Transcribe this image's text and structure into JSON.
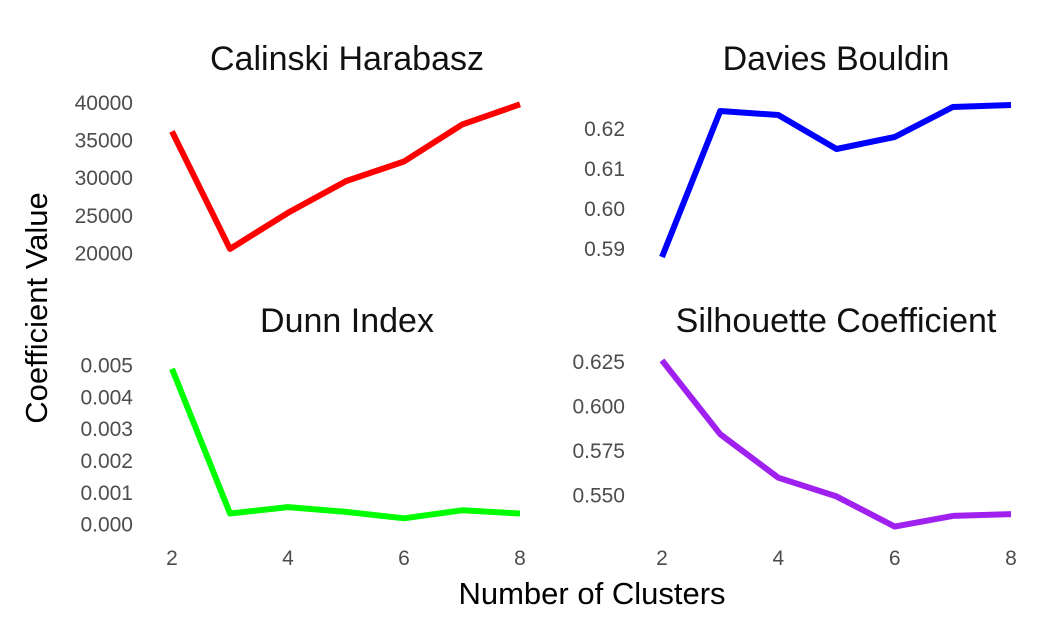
{
  "figure": {
    "ylabel": "Coefficient Value",
    "xlabel": "Number of Clusters"
  },
  "chart_data": [
    {
      "type": "line",
      "title": "Calinski Harabasz",
      "x": [
        2,
        3,
        4,
        5,
        6,
        7,
        8
      ],
      "series": [
        {
          "values": [
            36200,
            20600,
            25400,
            29600,
            32200,
            37100,
            39800
          ],
          "color": "#ff0000"
        }
      ],
      "ylim": [
        19000,
        40500
      ],
      "yticks": [
        "40000",
        "35000",
        "30000",
        "25000",
        "20000"
      ],
      "ytick_values": [
        40000,
        35000,
        30000,
        25000,
        20000
      ],
      "xlim": [
        2,
        8
      ],
      "xticks": [],
      "grid": false
    },
    {
      "type": "line",
      "title": "Davies Bouldin",
      "x": [
        2,
        3,
        4,
        5,
        6,
        7,
        8
      ],
      "series": [
        {
          "values": [
            0.588,
            0.6245,
            0.6235,
            0.615,
            0.618,
            0.6255,
            0.626
          ],
          "color": "#0000ff"
        }
      ],
      "ylim": [
        0.587,
        0.6275
      ],
      "yticks": [
        "0.62",
        "0.61",
        "0.60",
        "0.59"
      ],
      "ytick_values": [
        0.62,
        0.61,
        0.6,
        0.59
      ],
      "xlim": [
        2,
        8
      ],
      "xticks": [],
      "grid": false
    },
    {
      "type": "line",
      "title": "Dunn Index",
      "x": [
        2,
        3,
        4,
        5,
        6,
        7,
        8
      ],
      "series": [
        {
          "values": [
            0.0049,
            0.00035,
            0.00055,
            0.0004,
            0.0002,
            0.00045,
            0.00035
          ],
          "color": "#00ff00"
        }
      ],
      "ylim": [
        -0.0002,
        0.0053
      ],
      "yticks": [
        "0.005",
        "0.004",
        "0.003",
        "0.002",
        "0.001",
        "0.000"
      ],
      "ytick_values": [
        0.005,
        0.004,
        0.003,
        0.002,
        0.001,
        0.0
      ],
      "xlim": [
        2,
        8
      ],
      "xticks": [
        "2",
        "4",
        "6",
        "8"
      ],
      "xtick_values": [
        2,
        4,
        6,
        8
      ],
      "grid": false
    },
    {
      "type": "line",
      "title": "Silhouette Coefficient",
      "x": [
        2,
        3,
        4,
        5,
        6,
        7,
        8
      ],
      "series": [
        {
          "values": [
            0.626,
            0.5845,
            0.56,
            0.5495,
            0.5325,
            0.5385,
            0.5395
          ],
          "color": "#a020f0"
        }
      ],
      "ylim": [
        0.53,
        0.6285
      ],
      "yticks": [
        "0.625",
        "0.600",
        "0.575",
        "0.550"
      ],
      "ytick_values": [
        0.625,
        0.6,
        0.575,
        0.55
      ],
      "xlim": [
        2,
        8
      ],
      "xticks": [
        "2",
        "4",
        "6",
        "8"
      ],
      "xtick_values": [
        2,
        4,
        6,
        8
      ],
      "grid": false
    }
  ]
}
